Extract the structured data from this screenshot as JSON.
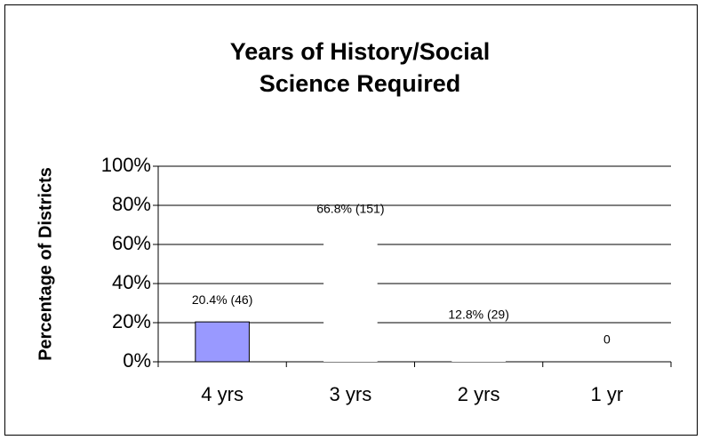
{
  "chart_data": {
    "type": "bar",
    "title": "Years of History/Social Science Required",
    "y_label": "Percentage of Districts",
    "categories": [
      "4 yrs",
      "3 yrs",
      "2 yrs",
      "1 yr"
    ],
    "values": [
      20.4,
      66.8,
      12.8,
      0
    ],
    "value_labels": [
      "20.4% (46)",
      "66.8% (151)",
      "12.8% (29)",
      "0"
    ],
    "colors": [
      "#9999ff",
      "#ffffff",
      "#ffffff",
      "#ffffff"
    ],
    "ylim": [
      0,
      100
    ],
    "yticks": [
      {
        "value": 0,
        "label": "0%"
      },
      {
        "value": 20,
        "label": "20%"
      },
      {
        "value": 40,
        "label": "40%"
      },
      {
        "value": 60,
        "label": "60%"
      },
      {
        "value": 80,
        "label": "80%"
      },
      {
        "value": 100,
        "label": "100%"
      }
    ],
    "grid": true
  }
}
